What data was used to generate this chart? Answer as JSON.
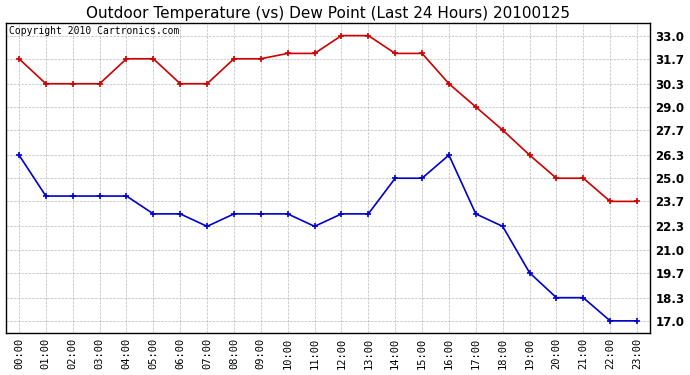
{
  "title": "Outdoor Temperature (vs) Dew Point (Last 24 Hours) 20100125",
  "copyright": "Copyright 2010 Cartronics.com",
  "x_labels": [
    "00:00",
    "01:00",
    "02:00",
    "03:00",
    "04:00",
    "05:00",
    "06:00",
    "07:00",
    "08:00",
    "09:00",
    "10:00",
    "11:00",
    "12:00",
    "13:00",
    "14:00",
    "15:00",
    "16:00",
    "17:00",
    "18:00",
    "19:00",
    "20:00",
    "21:00",
    "22:00",
    "23:00"
  ],
  "temp_data": [
    31.7,
    30.3,
    30.3,
    30.3,
    31.7,
    31.7,
    30.3,
    30.3,
    31.7,
    31.7,
    32.0,
    32.0,
    33.0,
    33.0,
    32.0,
    32.0,
    30.3,
    29.0,
    27.7,
    26.3,
    25.0,
    25.0,
    23.7,
    23.7
  ],
  "dew_data": [
    26.3,
    24.0,
    24.0,
    24.0,
    24.0,
    23.0,
    23.0,
    22.3,
    23.0,
    23.0,
    23.0,
    22.3,
    23.0,
    23.0,
    25.0,
    25.0,
    26.3,
    23.0,
    22.3,
    19.7,
    18.3,
    18.3,
    17.0,
    17.0
  ],
  "temp_color": "#cc0000",
  "dew_color": "#0000cc",
  "y_ticks": [
    17.0,
    18.3,
    19.7,
    21.0,
    22.3,
    23.7,
    25.0,
    26.3,
    27.7,
    29.0,
    30.3,
    31.7,
    33.0
  ],
  "ylim": [
    16.3,
    33.7
  ],
  "background_color": "#ffffff",
  "grid_color": "#aaaaaa",
  "title_fontsize": 11,
  "copyright_fontsize": 7,
  "tick_fontsize": 8.5,
  "xlabel_fontsize": 7.5
}
